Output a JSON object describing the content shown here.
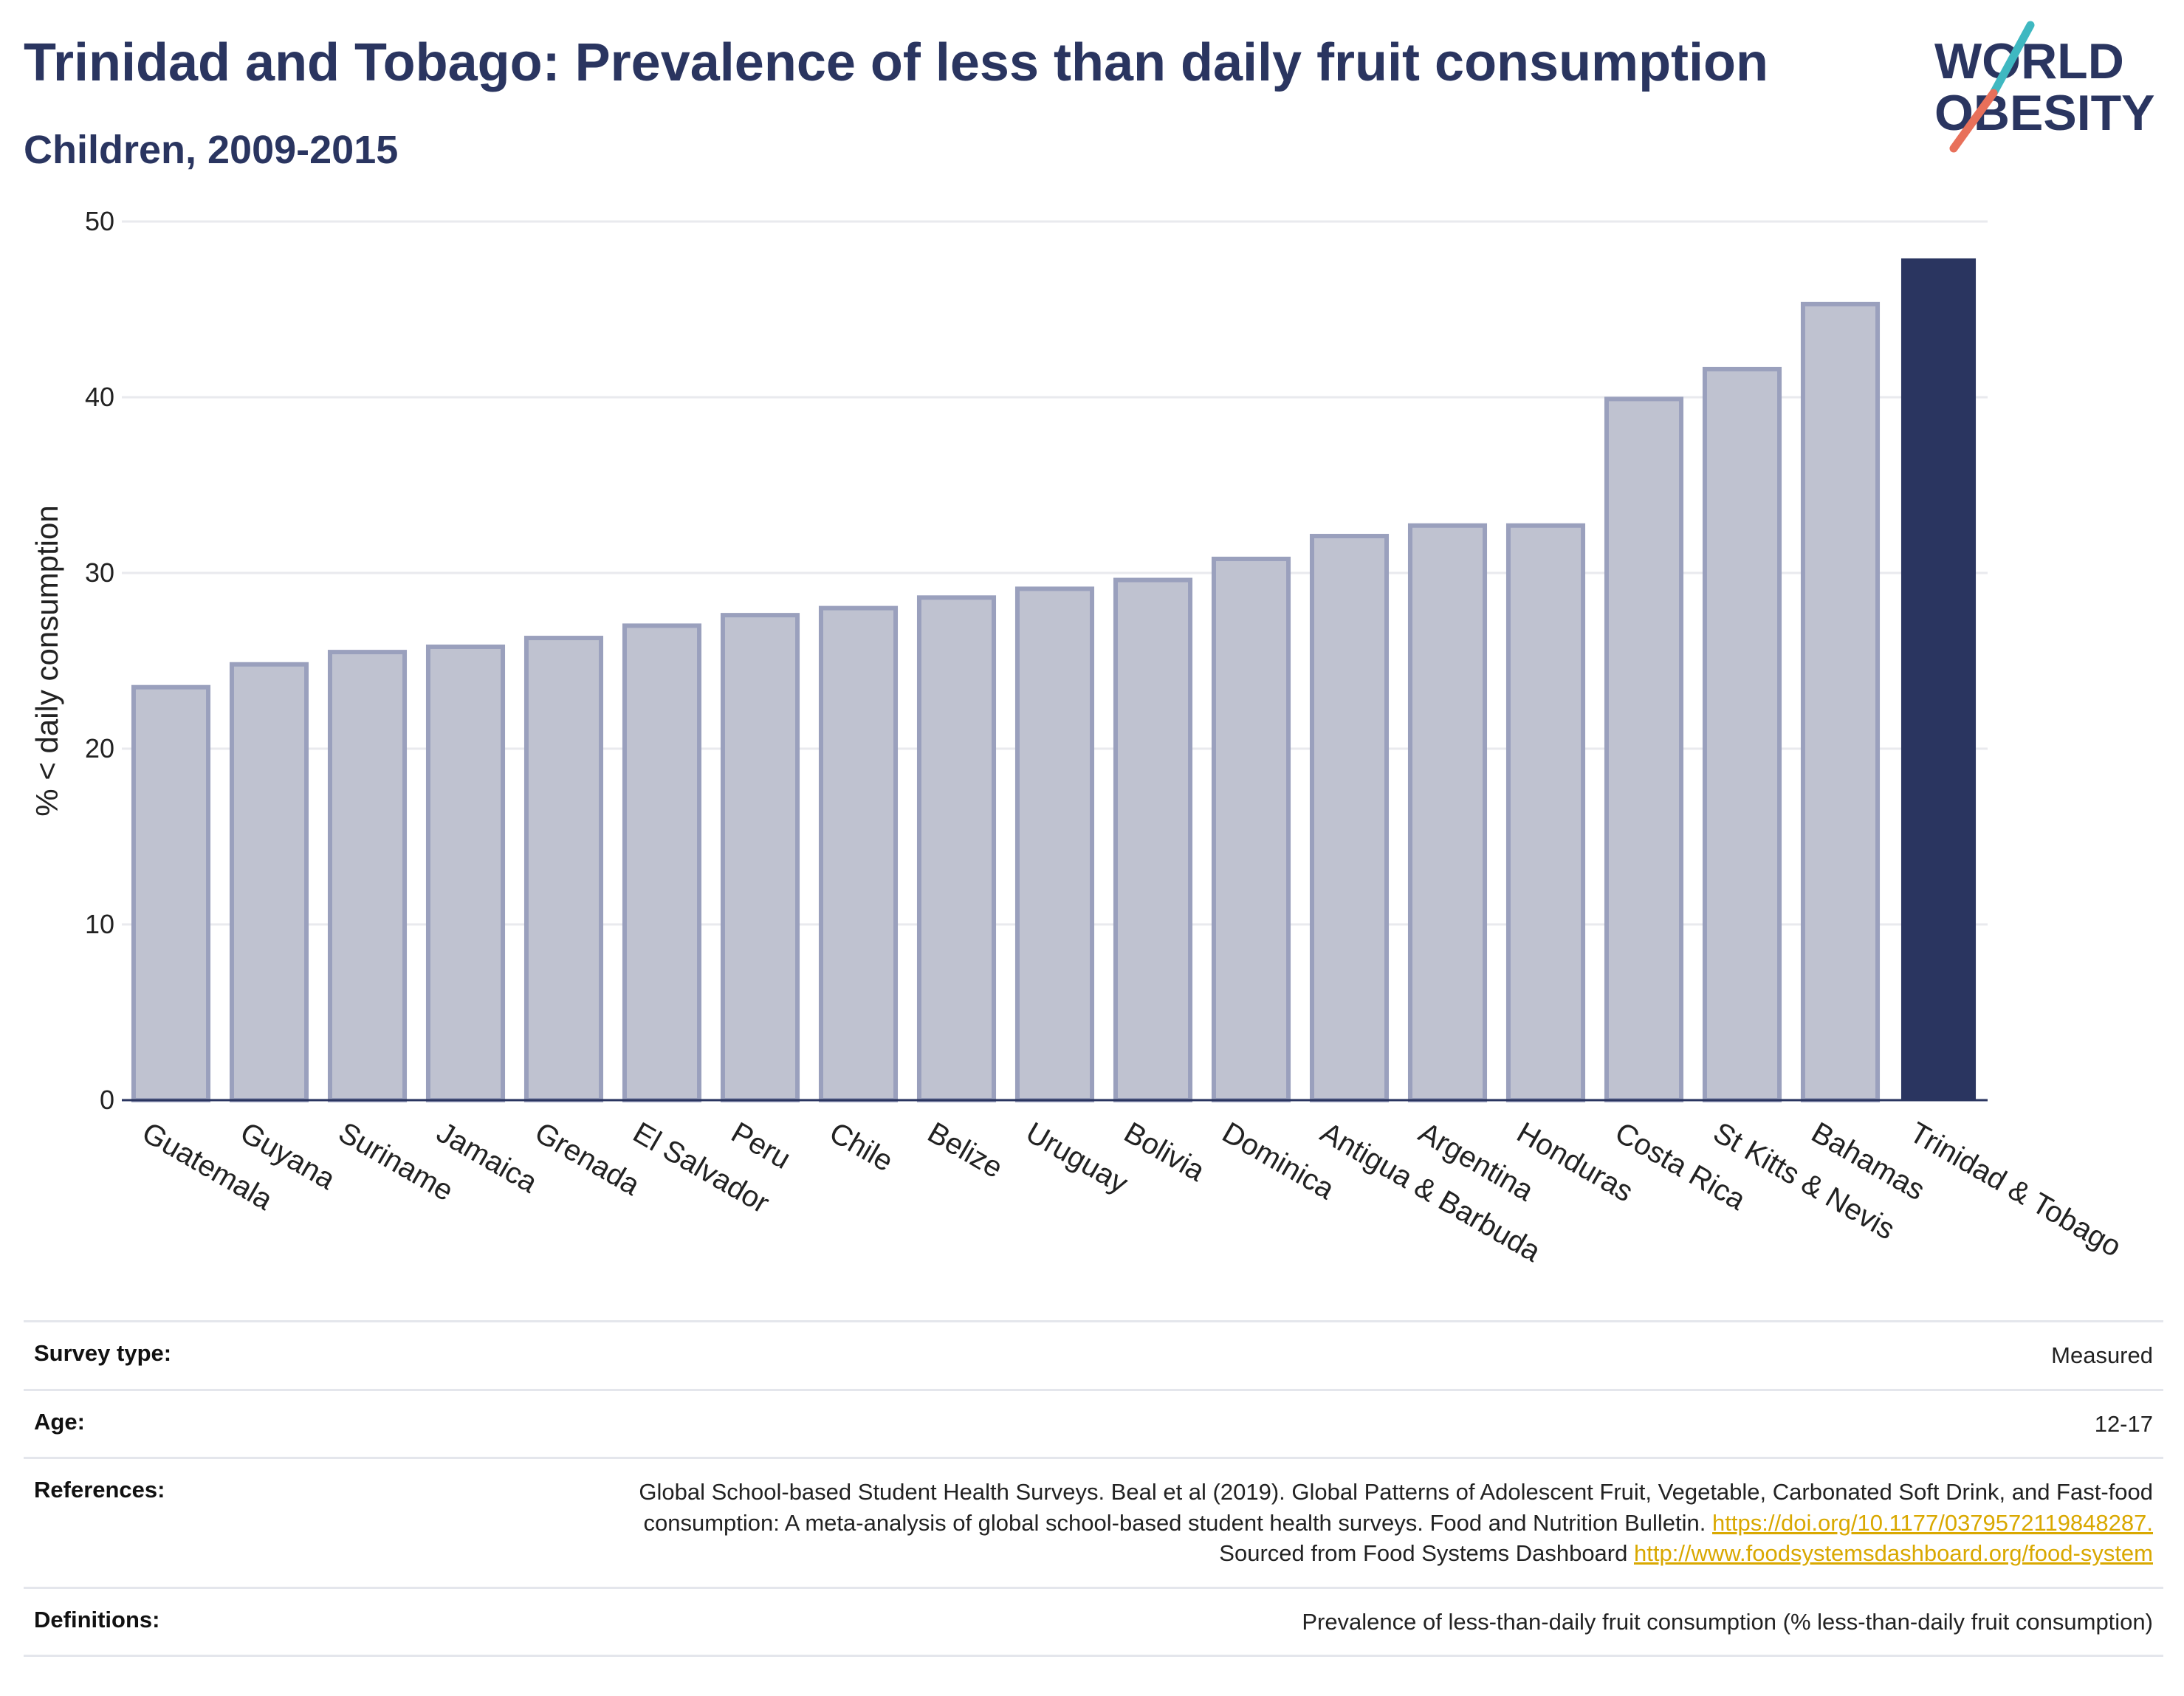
{
  "header": {
    "title": "Trinidad and Tobago: Prevalence of less than daily fruit consumption",
    "subtitle": "Children, 2009-2015"
  },
  "logo": {
    "line1": "WORLD",
    "line2": "OBESITY",
    "text_color": "#2a3560",
    "slash_colors": [
      "#3fb8c1",
      "#e8705a"
    ]
  },
  "colors": {
    "bar": "#bfc2d0",
    "bar_border": "#9aa0bd",
    "highlight": "#2a3560",
    "grid": "#e9eaee",
    "axis_text": "#222222"
  },
  "chart_data": {
    "type": "bar",
    "title": "Trinidad and Tobago: Prevalence of less than daily fruit consumption",
    "subtitle": "Children, 2009-2015",
    "xlabel": "",
    "ylabel": "% < daily consumption",
    "ylim": [
      0,
      50
    ],
    "yticks": [
      0,
      10,
      20,
      30,
      40,
      50
    ],
    "grid": true,
    "highlight": "Trinidad & Tobago",
    "categories": [
      "Guatemala",
      "Guyana",
      "Suriname",
      "Jamaica",
      "Grenada",
      "El Salvador",
      "Peru",
      "Chile",
      "Belize",
      "Uruguay",
      "Bolivia",
      "Dominica",
      "Antigua & Barbuda",
      "Argentina",
      "Honduras",
      "Costa Rica",
      "St Kitts & Nevis",
      "Bahamas",
      "Trinidad & Tobago"
    ],
    "values": [
      23.5,
      24.8,
      25.5,
      25.8,
      26.3,
      27.0,
      27.6,
      28.0,
      28.6,
      29.1,
      29.6,
      30.8,
      32.1,
      32.7,
      32.7,
      39.9,
      41.6,
      45.3,
      47.9
    ]
  },
  "meta": {
    "survey_type": {
      "label": "Survey type:",
      "value": "Measured"
    },
    "age": {
      "label": "Age:",
      "value": "12-17"
    },
    "references": {
      "label": "References:",
      "text1": "Global School-based Student Health Surveys. Beal et al (2019). Global Patterns of Adolescent Fruit, Vegetable, Carbonated Soft Drink, and Fast-food consumption: A meta-analysis of global school-based student health surveys. Food and Nutrition Bulletin.",
      "link1": "https://doi.org/10.1177/0379572119848287.",
      "text2": "Sourced from Food Systems Dashboard",
      "link2": "http://www.foodsystemsdashboard.org/food-system"
    },
    "definitions": {
      "label": "Definitions:",
      "value": "Prevalence of less-than-daily fruit consumption (% less-than-daily fruit consumption)"
    }
  }
}
